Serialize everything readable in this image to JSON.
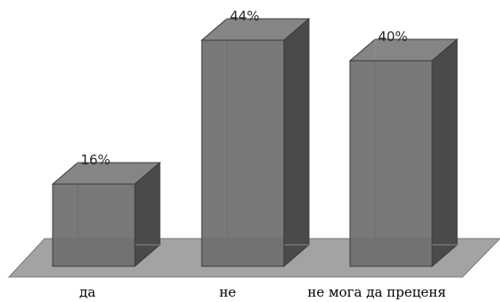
{
  "chart_data": {
    "type": "bar",
    "categories": [
      "да",
      "не",
      "не мога да преценя"
    ],
    "values": [
      16,
      44,
      40
    ],
    "value_labels": [
      "16%",
      "44%",
      "40%"
    ],
    "ylim": [
      0,
      44
    ],
    "grid": false,
    "legend": "none",
    "colors": {
      "bar_front": "#6e6e6e",
      "bar_side": "#4a4a4a",
      "bar_top": "#858585",
      "floor": "#a3a3a3"
    }
  }
}
